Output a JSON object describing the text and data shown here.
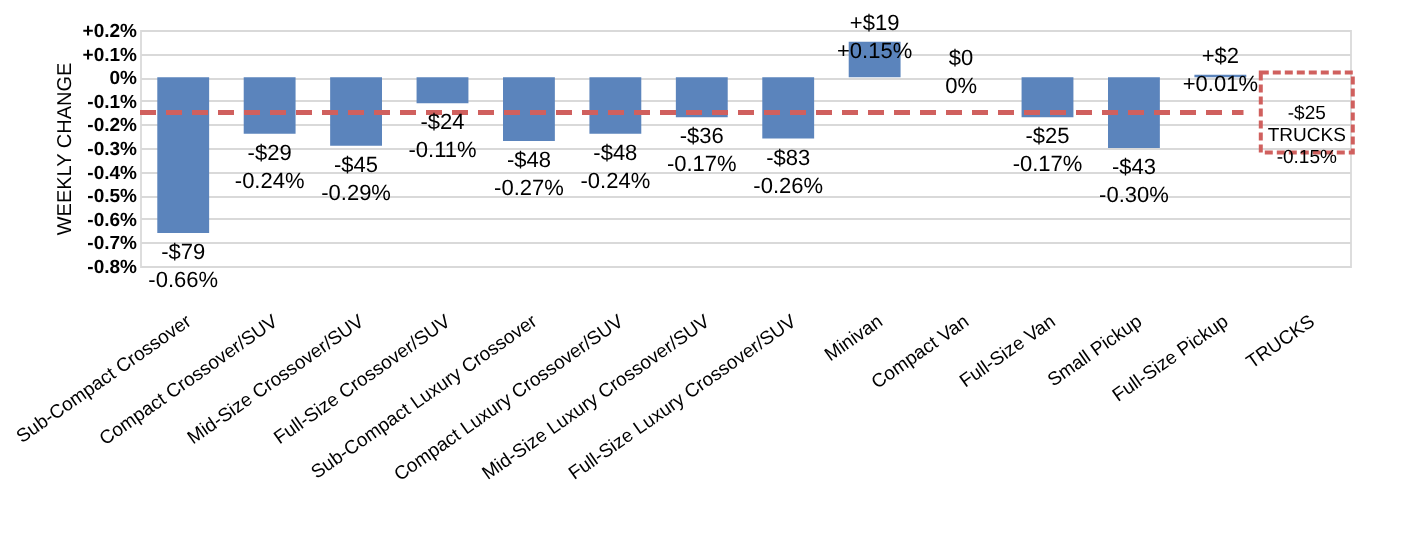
{
  "chart_data": {
    "type": "bar",
    "ylabel": "WEEKLY CHANGE",
    "categories": [
      "Sub-Compact Crossover",
      "Compact Crossover/SUV",
      "Mid-Size Crossover/SUV",
      "Full-Size Crossover/SUV",
      "Sub-Compact Luxury Crossover",
      "Compact Luxury Crossover/SUV",
      "Mid-Size Luxury Crossover/SUV",
      "Full-Size Luxury Crossover/SUV",
      "Minivan",
      "Compact Van",
      "Full-Size Van",
      "Small Pickup",
      "Full-Size Pickup",
      "TRUCKS"
    ],
    "values": [
      -0.66,
      -0.24,
      -0.29,
      -0.11,
      -0.27,
      -0.24,
      -0.17,
      -0.26,
      0.15,
      0,
      -0.17,
      -0.3,
      0.01,
      null
    ],
    "value_labels": [
      "-$79\n-0.66%",
      "-$29\n-0.24%",
      "-$45\n-0.29%",
      "-$24\n-0.11%",
      "-$48\n-0.27%",
      "-$48\n-0.24%",
      "-$36\n-0.17%",
      "-$83\n-0.26%",
      "+$19\n+0.15%",
      "$0\n0%",
      "-$25\n-0.17%",
      "-$43\n-0.30%",
      "+$2\n+0.01%",
      null
    ],
    "color": "#5b84bc",
    "ylim": [
      -0.8,
      0.2
    ],
    "yticks": [
      {
        "value": 0.2,
        "label": "+0.2%"
      },
      {
        "value": 0.1,
        "label": "+0.1%"
      },
      {
        "value": 0,
        "label": "0%"
      },
      {
        "value": -0.1,
        "label": "-0.1%"
      },
      {
        "value": -0.2,
        "label": "-0.2%"
      },
      {
        "value": -0.3,
        "label": "-0.3%"
      },
      {
        "value": -0.4,
        "label": "-0.4%"
      },
      {
        "value": -0.5,
        "label": "-0.5%"
      },
      {
        "value": -0.6,
        "label": "-0.6%"
      },
      {
        "value": -0.7,
        "label": "-0.7%"
      },
      {
        "value": -0.8,
        "label": "-0.8%"
      }
    ],
    "grid": "y",
    "ref_lines": [
      {
        "axis": "y",
        "value": -0.15,
        "label": "-$25\nTRUCKS\n-0.15%",
        "color": "#d0605e",
        "line_style": "dashed"
      }
    ]
  }
}
